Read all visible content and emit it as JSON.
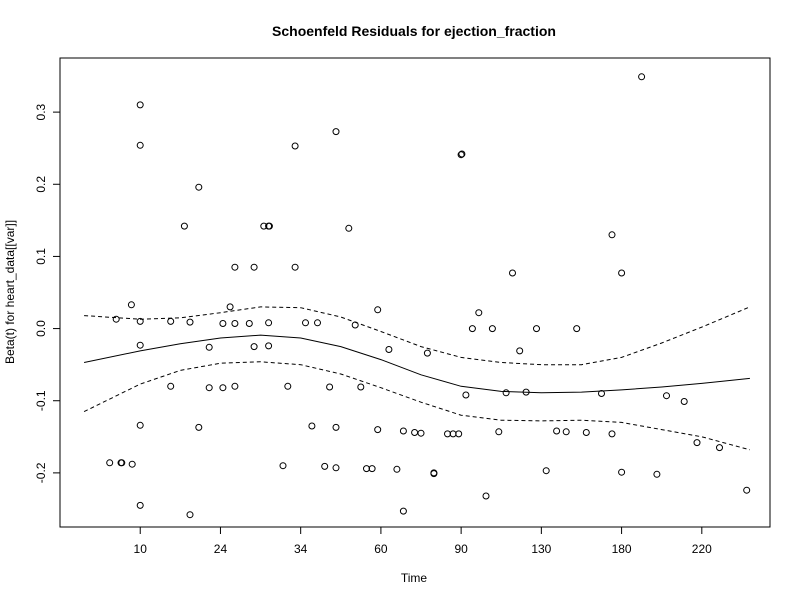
{
  "chart_data": {
    "type": "scatter",
    "title": "Schoenfeld Residuals for ejection_fraction",
    "xlabel": "Time",
    "ylabel": "Beta(t) for heart_data[[var]]",
    "x_tick_labels": [
      "10",
      "24",
      "34",
      "60",
      "90",
      "130",
      "180",
      "220"
    ],
    "x_tick_positions": [
      1.0,
      2.0,
      3.0,
      4.0,
      5.0,
      6.0,
      7.0,
      8.0
    ],
    "xlim": [
      0.0,
      8.85
    ],
    "y_ticks": [
      -0.2,
      -0.1,
      0.0,
      0.1,
      0.2,
      0.3
    ],
    "y_tick_labels": [
      "-0.2",
      "-0.1",
      "0.0",
      "0.1",
      "0.2",
      "0.3"
    ],
    "ylim": [
      -0.275,
      0.375
    ],
    "grid": false,
    "points": [
      [
        0.62,
        -0.186
      ],
      [
        0.7,
        0.013
      ],
      [
        0.76,
        -0.186
      ],
      [
        0.77,
        -0.186
      ],
      [
        0.89,
        0.033
      ],
      [
        0.9,
        -0.188
      ],
      [
        1.0,
        0.31
      ],
      [
        1.0,
        0.254
      ],
      [
        1.0,
        0.01
      ],
      [
        1.0,
        -0.023
      ],
      [
        1.0,
        -0.134
      ],
      [
        1.0,
        -0.245
      ],
      [
        1.38,
        0.01
      ],
      [
        1.38,
        -0.08
      ],
      [
        1.55,
        0.142
      ],
      [
        1.62,
        -0.258
      ],
      [
        1.62,
        0.009
      ],
      [
        1.73,
        0.196
      ],
      [
        1.73,
        -0.137
      ],
      [
        1.86,
        -0.026
      ],
      [
        1.86,
        -0.082
      ],
      [
        2.03,
        0.007
      ],
      [
        2.03,
        -0.082
      ],
      [
        2.12,
        0.03
      ],
      [
        2.18,
        0.085
      ],
      [
        2.18,
        0.007
      ],
      [
        2.18,
        -0.08
      ],
      [
        2.36,
        0.007
      ],
      [
        2.42,
        0.085
      ],
      [
        2.42,
        -0.025
      ],
      [
        2.54,
        0.142
      ],
      [
        2.6,
        0.142
      ],
      [
        2.61,
        0.142
      ],
      [
        2.6,
        0.008
      ],
      [
        2.6,
        -0.024
      ],
      [
        2.78,
        -0.19
      ],
      [
        2.84,
        -0.08
      ],
      [
        2.93,
        0.253
      ],
      [
        2.93,
        0.085
      ],
      [
        3.06,
        0.008
      ],
      [
        3.14,
        -0.135
      ],
      [
        3.21,
        0.008
      ],
      [
        3.3,
        -0.191
      ],
      [
        3.36,
        -0.081
      ],
      [
        3.44,
        0.273
      ],
      [
        3.44,
        -0.137
      ],
      [
        3.44,
        -0.193
      ],
      [
        3.6,
        0.139
      ],
      [
        3.68,
        0.005
      ],
      [
        3.75,
        -0.081
      ],
      [
        3.82,
        -0.194
      ],
      [
        3.89,
        -0.194
      ],
      [
        3.96,
        0.026
      ],
      [
        3.96,
        -0.14
      ],
      [
        4.1,
        -0.029
      ],
      [
        4.2,
        -0.195
      ],
      [
        4.28,
        -0.142
      ],
      [
        4.28,
        -0.253
      ],
      [
        4.42,
        -0.144
      ],
      [
        4.5,
        -0.145
      ],
      [
        4.58,
        -0.034
      ],
      [
        4.66,
        -0.201
      ],
      [
        4.66,
        -0.2
      ],
      [
        4.83,
        -0.146
      ],
      [
        4.9,
        -0.146
      ],
      [
        4.97,
        -0.146
      ],
      [
        5.06,
        -0.092
      ],
      [
        5.0,
        0.241
      ],
      [
        5.01,
        0.242
      ],
      [
        5.14,
        0.0
      ],
      [
        5.22,
        0.022
      ],
      [
        5.31,
        -0.232
      ],
      [
        5.39,
        0.0
      ],
      [
        5.47,
        -0.143
      ],
      [
        5.56,
        -0.089
      ],
      [
        5.64,
        0.077
      ],
      [
        5.73,
        -0.031
      ],
      [
        5.81,
        -0.088
      ],
      [
        5.94,
        0.0
      ],
      [
        6.06,
        -0.197
      ],
      [
        6.19,
        -0.142
      ],
      [
        6.31,
        -0.143
      ],
      [
        6.44,
        0.0
      ],
      [
        6.56,
        -0.144
      ],
      [
        6.75,
        -0.09
      ],
      [
        6.88,
        0.13
      ],
      [
        6.88,
        -0.146
      ],
      [
        7.0,
        0.077
      ],
      [
        7.0,
        -0.199
      ],
      [
        7.25,
        0.349
      ],
      [
        7.44,
        -0.202
      ],
      [
        7.56,
        -0.093
      ],
      [
        7.78,
        -0.101
      ],
      [
        7.94,
        -0.158
      ],
      [
        8.22,
        -0.165
      ],
      [
        8.56,
        -0.224
      ]
    ],
    "fit": {
      "x": [
        0.3,
        1.0,
        1.5,
        2.0,
        2.5,
        3.0,
        3.5,
        4.0,
        4.5,
        5.0,
        5.5,
        6.0,
        6.5,
        7.0,
        7.5,
        8.0,
        8.6
      ],
      "y": [
        -0.047,
        -0.031,
        -0.021,
        -0.013,
        -0.009,
        -0.013,
        -0.025,
        -0.043,
        -0.064,
        -0.08,
        -0.087,
        -0.089,
        -0.088,
        -0.085,
        -0.081,
        -0.076,
        -0.069
      ]
    },
    "upper_band": {
      "x": [
        0.3,
        1.0,
        1.5,
        2.0,
        2.5,
        3.0,
        3.5,
        4.0,
        4.5,
        5.0,
        5.5,
        6.0,
        6.5,
        7.0,
        7.5,
        8.0,
        8.6
      ],
      "y": [
        0.018,
        0.013,
        0.015,
        0.022,
        0.03,
        0.029,
        0.016,
        -0.004,
        -0.025,
        -0.04,
        -0.047,
        -0.05,
        -0.05,
        -0.04,
        -0.02,
        0.002,
        0.03
      ]
    },
    "lower_band": {
      "x": [
        0.3,
        1.0,
        1.5,
        2.0,
        2.5,
        3.0,
        3.5,
        4.0,
        4.5,
        5.0,
        5.5,
        6.0,
        6.5,
        7.0,
        7.5,
        8.0,
        8.6
      ],
      "y": [
        -0.115,
        -0.077,
        -0.058,
        -0.048,
        -0.046,
        -0.05,
        -0.063,
        -0.082,
        -0.102,
        -0.12,
        -0.127,
        -0.128,
        -0.127,
        -0.13,
        -0.14,
        -0.15,
        -0.168
      ]
    },
    "colors": {
      "points": "#000000",
      "lines": "#000000",
      "background": "#ffffff"
    }
  }
}
